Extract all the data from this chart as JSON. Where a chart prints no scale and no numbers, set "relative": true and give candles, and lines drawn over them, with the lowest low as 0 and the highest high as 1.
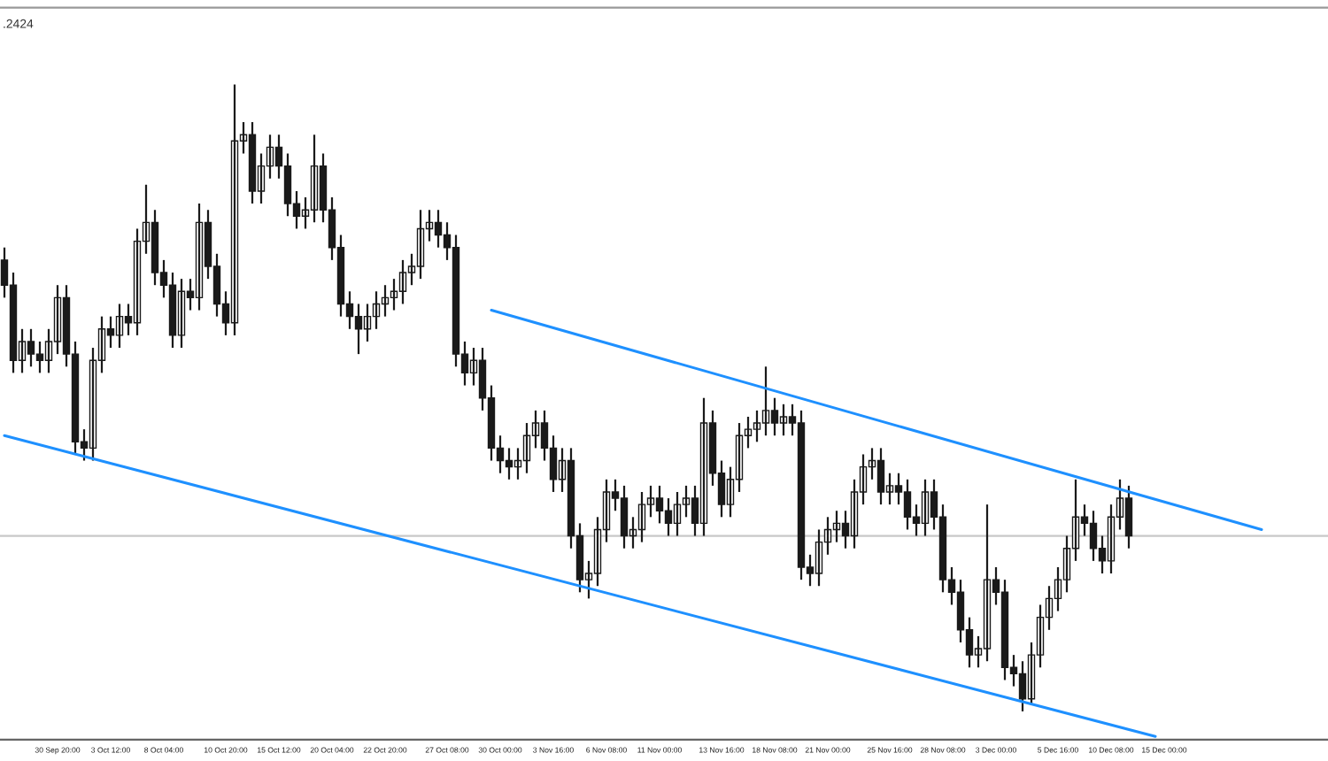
{
  "chart_data": {
    "type": "candlestick",
    "relative": true,
    "color": "#1a1a1a",
    "categories": [
      null,
      null,
      null,
      null,
      null,
      null,
      "30 Sep 20:00",
      null,
      null,
      null,
      null,
      null,
      "3 Oct 12:00",
      null,
      null,
      null,
      null,
      null,
      "8 Oct 04:00",
      null,
      null,
      null,
      null,
      null,
      null,
      "10 Oct 20:00",
      null,
      null,
      null,
      null,
      null,
      "15 Oct 12:00",
      null,
      null,
      null,
      null,
      null,
      "20 Oct 04:00",
      null,
      null,
      null,
      null,
      null,
      "22 Oct 20:00",
      null,
      null,
      null,
      null,
      null,
      null,
      "27 Oct 08:00",
      null,
      null,
      null,
      null,
      null,
      "30 Oct 00:00",
      null,
      null,
      null,
      null,
      null,
      "3 Nov 16:00",
      null,
      null,
      null,
      null,
      null,
      "6 Nov 08:00",
      null,
      null,
      null,
      null,
      null,
      "11 Nov 00:00",
      null,
      null,
      null,
      null,
      null,
      null,
      "13 Nov 16:00",
      null,
      null,
      null,
      null,
      null,
      "18 Nov 08:00",
      null,
      null,
      null,
      null,
      null,
      "21 Nov 00:00",
      null,
      null,
      null,
      null,
      null,
      null,
      "25 Nov 16:00",
      null,
      null,
      null,
      null,
      null,
      "28 Nov 08:00",
      null,
      null,
      null,
      null,
      null,
      "3 Dec 00:00",
      null,
      null,
      null,
      null,
      null,
      null,
      "5 Dec 16:00",
      null,
      null,
      null,
      null,
      null,
      "10 Dec 08:00",
      null,
      null,
      null,
      null,
      null,
      "15 Dec 00:00",
      null,
      null,
      null,
      null,
      null,
      null,
      null,
      null,
      null,
      null,
      null,
      null,
      null,
      null,
      null,
      null,
      null,
      null
    ],
    "ohlc": [
      [
        0.72,
        0.74,
        0.66,
        0.68
      ],
      [
        0.68,
        0.7,
        0.54,
        0.56
      ],
      [
        0.56,
        0.61,
        0.54,
        0.59
      ],
      [
        0.59,
        0.61,
        0.55,
        0.57
      ],
      [
        0.57,
        0.59,
        0.54,
        0.56
      ],
      [
        0.56,
        0.61,
        0.54,
        0.59
      ],
      [
        0.59,
        0.68,
        0.57,
        0.66
      ],
      [
        0.66,
        0.68,
        0.55,
        0.57
      ],
      [
        0.57,
        0.59,
        0.41,
        0.43
      ],
      [
        0.43,
        0.45,
        0.4,
        0.42
      ],
      [
        0.42,
        0.58,
        0.4,
        0.56
      ],
      [
        0.56,
        0.63,
        0.54,
        0.61
      ],
      [
        0.61,
        0.63,
        0.58,
        0.6
      ],
      [
        0.6,
        0.65,
        0.58,
        0.63
      ],
      [
        0.63,
        0.65,
        0.6,
        0.62
      ],
      [
        0.62,
        0.77,
        0.6,
        0.75
      ],
      [
        0.75,
        0.84,
        0.73,
        0.78
      ],
      [
        0.78,
        0.8,
        0.68,
        0.7
      ],
      [
        0.7,
        0.72,
        0.66,
        0.68
      ],
      [
        0.68,
        0.7,
        0.58,
        0.6
      ],
      [
        0.6,
        0.69,
        0.58,
        0.67
      ],
      [
        0.67,
        0.69,
        0.64,
        0.66
      ],
      [
        0.66,
        0.81,
        0.64,
        0.78
      ],
      [
        0.78,
        0.8,
        0.69,
        0.71
      ],
      [
        0.71,
        0.73,
        0.63,
        0.65
      ],
      [
        0.65,
        0.67,
        0.6,
        0.62
      ],
      [
        0.62,
        1.0,
        0.6,
        0.91
      ],
      [
        0.91,
        0.94,
        0.89,
        0.92
      ],
      [
        0.92,
        0.94,
        0.81,
        0.83
      ],
      [
        0.83,
        0.89,
        0.81,
        0.87
      ],
      [
        0.87,
        0.92,
        0.85,
        0.9
      ],
      [
        0.9,
        0.92,
        0.85,
        0.87
      ],
      [
        0.87,
        0.89,
        0.79,
        0.81
      ],
      [
        0.81,
        0.83,
        0.77,
        0.79
      ],
      [
        0.79,
        0.82,
        0.77,
        0.8
      ],
      [
        0.8,
        0.92,
        0.78,
        0.87
      ],
      [
        0.87,
        0.89,
        0.78,
        0.8
      ],
      [
        0.8,
        0.82,
        0.72,
        0.74
      ],
      [
        0.74,
        0.76,
        0.63,
        0.65
      ],
      [
        0.65,
        0.67,
        0.61,
        0.63
      ],
      [
        0.63,
        0.65,
        0.57,
        0.61
      ],
      [
        0.61,
        0.65,
        0.59,
        0.63
      ],
      [
        0.63,
        0.67,
        0.61,
        0.65
      ],
      [
        0.65,
        0.68,
        0.63,
        0.66
      ],
      [
        0.66,
        0.69,
        0.64,
        0.67
      ],
      [
        0.67,
        0.72,
        0.65,
        0.7
      ],
      [
        0.7,
        0.73,
        0.68,
        0.71
      ],
      [
        0.71,
        0.8,
        0.69,
        0.77
      ],
      [
        0.77,
        0.8,
        0.75,
        0.78
      ],
      [
        0.78,
        0.8,
        0.74,
        0.76
      ],
      [
        0.76,
        0.78,
        0.72,
        0.74
      ],
      [
        0.74,
        0.76,
        0.55,
        0.57
      ],
      [
        0.57,
        0.59,
        0.52,
        0.54
      ],
      [
        0.54,
        0.58,
        0.52,
        0.56
      ],
      [
        0.56,
        0.58,
        0.48,
        0.5
      ],
      [
        0.5,
        0.52,
        0.4,
        0.42
      ],
      [
        0.42,
        0.44,
        0.38,
        0.4
      ],
      [
        0.4,
        0.42,
        0.37,
        0.39
      ],
      [
        0.39,
        0.42,
        0.37,
        0.4
      ],
      [
        0.4,
        0.46,
        0.38,
        0.44
      ],
      [
        0.44,
        0.48,
        0.42,
        0.46
      ],
      [
        0.46,
        0.48,
        0.4,
        0.42
      ],
      [
        0.42,
        0.44,
        0.35,
        0.37
      ],
      [
        0.37,
        0.42,
        0.35,
        0.4
      ],
      [
        0.4,
        0.42,
        0.26,
        0.28
      ],
      [
        0.28,
        0.3,
        0.19,
        0.21
      ],
      [
        0.21,
        0.24,
        0.18,
        0.22
      ],
      [
        0.22,
        0.31,
        0.2,
        0.29
      ],
      [
        0.29,
        0.37,
        0.27,
        0.35
      ],
      [
        0.35,
        0.37,
        0.32,
        0.34
      ],
      [
        0.34,
        0.36,
        0.26,
        0.28
      ],
      [
        0.28,
        0.31,
        0.26,
        0.29
      ],
      [
        0.29,
        0.35,
        0.27,
        0.33
      ],
      [
        0.33,
        0.36,
        0.31,
        0.34
      ],
      [
        0.34,
        0.36,
        0.3,
        0.32
      ],
      [
        0.32,
        0.34,
        0.28,
        0.3
      ],
      [
        0.3,
        0.35,
        0.28,
        0.33
      ],
      [
        0.33,
        0.36,
        0.31,
        0.34
      ],
      [
        0.34,
        0.36,
        0.28,
        0.3
      ],
      [
        0.3,
        0.5,
        0.28,
        0.46
      ],
      [
        0.46,
        0.48,
        0.36,
        0.38
      ],
      [
        0.38,
        0.4,
        0.31,
        0.33
      ],
      [
        0.33,
        0.39,
        0.31,
        0.37
      ],
      [
        0.37,
        0.46,
        0.35,
        0.44
      ],
      [
        0.44,
        0.47,
        0.42,
        0.45
      ],
      [
        0.45,
        0.48,
        0.43,
        0.46
      ],
      [
        0.46,
        0.55,
        0.44,
        0.48
      ],
      [
        0.48,
        0.5,
        0.44,
        0.46
      ],
      [
        0.46,
        0.49,
        0.44,
        0.47
      ],
      [
        0.47,
        0.49,
        0.44,
        0.46
      ],
      [
        0.46,
        0.48,
        0.21,
        0.23
      ],
      [
        0.23,
        0.25,
        0.2,
        0.22
      ],
      [
        0.22,
        0.29,
        0.2,
        0.27
      ],
      [
        0.27,
        0.31,
        0.25,
        0.29
      ],
      [
        0.29,
        0.32,
        0.27,
        0.3
      ],
      [
        0.3,
        0.32,
        0.26,
        0.28
      ],
      [
        0.28,
        0.37,
        0.26,
        0.35
      ],
      [
        0.35,
        0.41,
        0.33,
        0.39
      ],
      [
        0.39,
        0.42,
        0.37,
        0.4
      ],
      [
        0.4,
        0.42,
        0.33,
        0.35
      ],
      [
        0.35,
        0.38,
        0.33,
        0.36
      ],
      [
        0.36,
        0.38,
        0.33,
        0.35
      ],
      [
        0.35,
        0.37,
        0.29,
        0.31
      ],
      [
        0.31,
        0.33,
        0.28,
        0.3
      ],
      [
        0.3,
        0.37,
        0.28,
        0.35
      ],
      [
        0.35,
        0.37,
        0.29,
        0.31
      ],
      [
        0.31,
        0.33,
        0.19,
        0.21
      ],
      [
        0.21,
        0.23,
        0.17,
        0.19
      ],
      [
        0.19,
        0.21,
        0.11,
        0.13
      ],
      [
        0.13,
        0.15,
        0.07,
        0.09
      ],
      [
        0.09,
        0.12,
        0.07,
        0.1
      ],
      [
        0.1,
        0.33,
        0.08,
        0.21
      ],
      [
        0.21,
        0.23,
        0.17,
        0.19
      ],
      [
        0.19,
        0.21,
        0.05,
        0.07
      ],
      [
        0.07,
        0.09,
        0.04,
        0.06
      ],
      [
        0.06,
        0.08,
        0.0,
        0.02
      ],
      [
        0.02,
        0.11,
        0.01,
        0.09
      ],
      [
        0.09,
        0.17,
        0.07,
        0.15
      ],
      [
        0.15,
        0.2,
        0.13,
        0.18
      ],
      [
        0.18,
        0.23,
        0.16,
        0.21
      ],
      [
        0.21,
        0.28,
        0.19,
        0.26
      ],
      [
        0.26,
        0.37,
        0.24,
        0.31
      ],
      [
        0.31,
        0.33,
        0.28,
        0.3
      ],
      [
        0.3,
        0.32,
        0.24,
        0.26
      ],
      [
        0.26,
        0.28,
        0.22,
        0.24
      ],
      [
        0.24,
        0.33,
        0.22,
        0.31
      ],
      [
        0.31,
        0.37,
        0.29,
        0.34
      ],
      [
        0.34,
        0.36,
        0.26,
        0.28
      ],
      null,
      null,
      null,
      null,
      null,
      null,
      null,
      null,
      null,
      null,
      null,
      null,
      null,
      null,
      null,
      null,
      null,
      null,
      null,
      null,
      null,
      null
    ],
    "series": [
      {
        "type": "line",
        "color": "#1e90ff",
        "values": [
          0.44,
          null,
          null,
          null,
          null,
          null,
          null,
          null,
          null,
          null,
          null,
          null,
          null,
          null,
          null,
          null,
          null,
          null,
          null,
          null,
          null,
          null,
          null,
          null,
          null,
          null,
          null,
          null,
          null,
          null,
          null,
          null,
          null,
          null,
          null,
          null,
          null,
          null,
          null,
          null,
          null,
          null,
          null,
          null,
          null,
          null,
          null,
          null,
          null,
          null,
          null,
          null,
          null,
          null,
          null,
          null,
          null,
          null,
          null,
          null,
          null,
          null,
          null,
          null,
          null,
          null,
          null,
          null,
          null,
          null,
          null,
          null,
          null,
          null,
          null,
          null,
          null,
          null,
          null,
          null,
          null,
          null,
          null,
          null,
          null,
          null,
          null,
          null,
          null,
          null,
          null,
          null,
          null,
          null,
          null,
          null,
          null,
          null,
          null,
          null,
          null,
          null,
          null,
          null,
          null,
          null,
          null,
          null,
          null,
          null,
          null,
          null,
          null,
          null,
          null,
          null,
          null,
          null,
          null,
          null,
          null,
          null,
          null,
          null,
          null,
          null,
          null,
          null,
          null,
          null,
          -0.04,
          null,
          null,
          null,
          null,
          null,
          null,
          null,
          null,
          null,
          null,
          null,
          null,
          null,
          null,
          null,
          null,
          null,
          null,
          null
        ]
      },
      {
        "type": "line",
        "color": "#1e90ff",
        "values": [
          null,
          null,
          null,
          null,
          null,
          null,
          null,
          null,
          null,
          null,
          null,
          null,
          null,
          null,
          null,
          null,
          null,
          null,
          null,
          null,
          null,
          null,
          null,
          null,
          null,
          null,
          null,
          null,
          null,
          null,
          null,
          null,
          null,
          null,
          null,
          null,
          null,
          null,
          null,
          null,
          null,
          null,
          null,
          null,
          null,
          null,
          null,
          null,
          null,
          null,
          null,
          null,
          null,
          null,
          null,
          0.64,
          null,
          null,
          null,
          null,
          null,
          null,
          null,
          null,
          null,
          null,
          null,
          null,
          null,
          null,
          null,
          null,
          null,
          null,
          null,
          null,
          null,
          null,
          null,
          null,
          null,
          null,
          null,
          null,
          null,
          null,
          null,
          null,
          null,
          null,
          null,
          null,
          null,
          null,
          null,
          null,
          null,
          null,
          null,
          null,
          null,
          null,
          null,
          null,
          null,
          null,
          null,
          null,
          null,
          null,
          null,
          null,
          null,
          null,
          null,
          null,
          null,
          null,
          null,
          null,
          null,
          null,
          null,
          null,
          null,
          null,
          null,
          null,
          null,
          null,
          null,
          null,
          null,
          null,
          null,
          null,
          null,
          null,
          null,
          null,
          null,
          null,
          0.29,
          null,
          null,
          null,
          null,
          null,
          null,
          null
        ]
      }
    ],
    "ref_lines": [
      {
        "axis": "y",
        "value": 0.28,
        "color": "#c8c8c8"
      }
    ],
    "annotations": [
      ".2424"
    ],
    "grid": false
  }
}
